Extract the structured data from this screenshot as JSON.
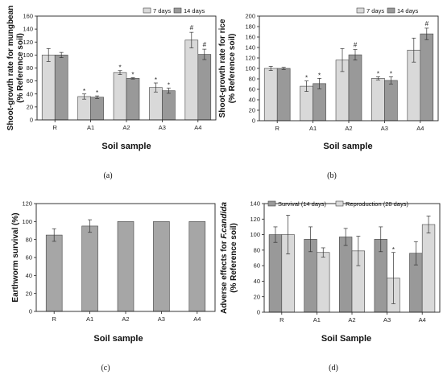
{
  "captions": [
    "(a)",
    "(b)",
    "(c)",
    "(d)"
  ],
  "chart_data": [
    {
      "type": "bar",
      "ylabel": [
        "Shoot-growth rate for mungbean",
        "(% Reference soil)"
      ],
      "xlabel": "Soil sample",
      "categories": [
        "R",
        "A1",
        "A2",
        "A3",
        "A4"
      ],
      "ylim": [
        0,
        160
      ],
      "yticks": [
        0,
        20,
        40,
        60,
        80,
        100,
        120,
        140,
        160
      ],
      "legend_position": "top-right",
      "series": [
        {
          "name": "7 days",
          "color": "#d9d9d9",
          "values": [
            100,
            36,
            73,
            50,
            123
          ],
          "errors": [
            10,
            4,
            3,
            7,
            12
          ]
        },
        {
          "name": "14 days",
          "color": "#999999",
          "values": [
            100,
            35,
            64,
            45,
            101
          ],
          "errors": [
            4,
            2,
            1,
            4,
            8
          ]
        }
      ],
      "annotations": [
        {
          "category": "A1",
          "series": 0,
          "text": "*"
        },
        {
          "category": "A1",
          "series": 1,
          "text": "*"
        },
        {
          "category": "A2",
          "series": 0,
          "text": "*"
        },
        {
          "category": "A2",
          "series": 1,
          "text": "*"
        },
        {
          "category": "A3",
          "series": 0,
          "text": "*"
        },
        {
          "category": "A3",
          "series": 1,
          "text": "*"
        },
        {
          "category": "A4",
          "series": 0,
          "text": "#"
        },
        {
          "category": "A4",
          "series": 1,
          "text": "#"
        }
      ]
    },
    {
      "type": "bar",
      "ylabel": [
        "Shoot-growth rate for rice",
        "(% Reference soil)"
      ],
      "xlabel": "Soil sample",
      "categories": [
        "R",
        "A1",
        "A2",
        "A3",
        "A4"
      ],
      "ylim": [
        0,
        200
      ],
      "yticks": [
        0,
        20,
        40,
        60,
        80,
        100,
        120,
        140,
        160,
        180,
        200
      ],
      "legend_position": "top-right",
      "series": [
        {
          "name": "7 days",
          "color": "#d9d9d9",
          "values": [
            100,
            66,
            116,
            81,
            135
          ],
          "errors": [
            4,
            10,
            22,
            3,
            23
          ]
        },
        {
          "name": "14 days",
          "color": "#999999",
          "values": [
            100,
            71,
            126,
            77,
            166
          ],
          "errors": [
            2,
            10,
            10,
            7,
            11
          ]
        }
      ],
      "annotations": [
        {
          "category": "A1",
          "series": 0,
          "text": "*"
        },
        {
          "category": "A1",
          "series": 1,
          "text": "*"
        },
        {
          "category": "A2",
          "series": 1,
          "text": "#"
        },
        {
          "category": "A3",
          "series": 0,
          "text": "*"
        },
        {
          "category": "A3",
          "series": 1,
          "text": "*"
        },
        {
          "category": "A4",
          "series": 1,
          "text": "#"
        }
      ]
    },
    {
      "type": "bar",
      "ylabel": [
        "Earthworm survival (%)"
      ],
      "xlabel": "Soil sample",
      "categories": [
        "R",
        "A1",
        "A2",
        "A3",
        "A4"
      ],
      "ylim": [
        0,
        120
      ],
      "yticks": [
        0,
        20,
        40,
        60,
        80,
        100,
        120
      ],
      "legend_position": "none",
      "series": [
        {
          "name": "",
          "color": "#a6a6a6",
          "values": [
            85,
            95,
            100,
            100,
            100
          ],
          "errors": [
            7,
            7,
            0,
            0,
            0
          ]
        }
      ],
      "annotations": []
    },
    {
      "type": "bar",
      "ylabel": [
        "Adverse effects for F.candida",
        "(% Reference soil)"
      ],
      "xlabel": "Soil Sample",
      "categories": [
        "R",
        "A1",
        "A2",
        "A3",
        "A4"
      ],
      "ylim": [
        0,
        140
      ],
      "yticks": [
        0,
        20,
        40,
        60,
        80,
        100,
        120,
        140
      ],
      "legend_position": "top",
      "series": [
        {
          "name": "Survival (14 days)",
          "color": "#999999",
          "values": [
            100,
            94,
            97,
            94,
            76
          ],
          "errors": [
            10,
            16,
            11,
            16,
            15
          ]
        },
        {
          "name": "Reproduction (28 days)",
          "color": "#d9d9d9",
          "values": [
            100,
            77,
            79,
            44,
            113
          ],
          "errors": [
            25,
            6,
            19,
            33,
            11
          ]
        }
      ],
      "annotations": [
        {
          "category": "A3",
          "series": 1,
          "text": "*"
        }
      ]
    }
  ]
}
